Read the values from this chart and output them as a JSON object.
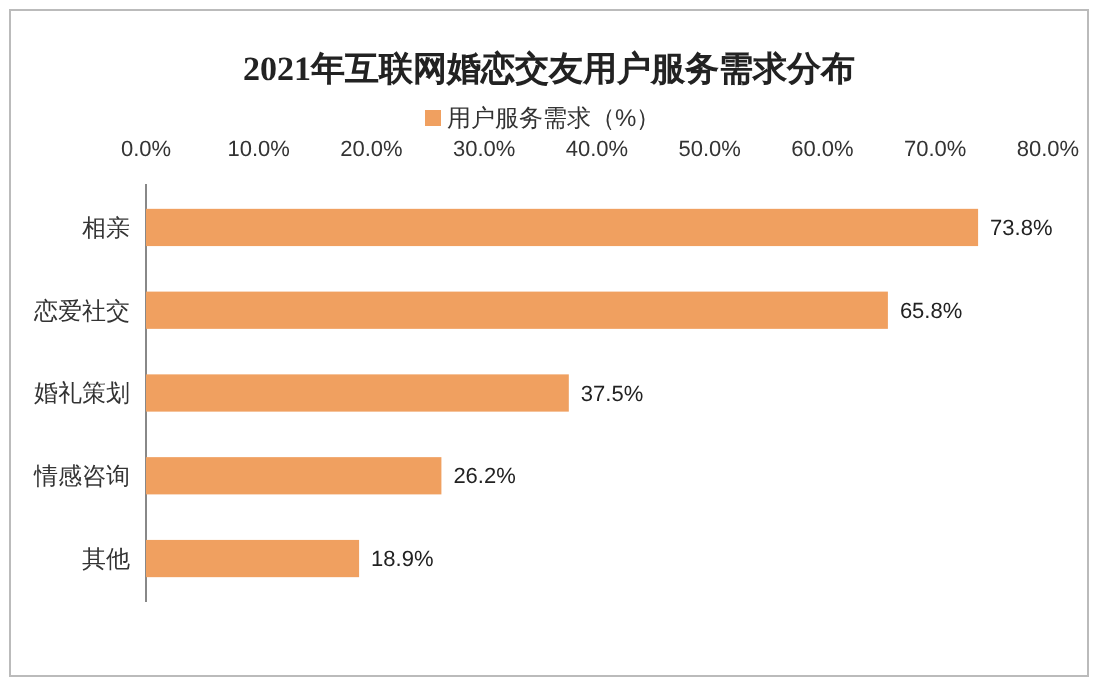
{
  "chart_data": {
    "type": "bar",
    "orientation": "horizontal",
    "title": "2021年互联网婚恋交友用户服务需求分布",
    "categories": [
      "相亲",
      "恋爱社交",
      "婚礼策划",
      "情感咨询",
      "其他"
    ],
    "series": [
      {
        "name": "用户服务需求（%）",
        "color": "#f0a060",
        "values": [
          73.8,
          65.8,
          37.5,
          26.2,
          18.9
        ],
        "value_labels": [
          "73.8%",
          "65.8%",
          "37.5%",
          "26.2%",
          "18.9%"
        ]
      }
    ],
    "xlim": [
      0,
      80
    ],
    "xticks": [
      {
        "value": 0,
        "label": "0.0%"
      },
      {
        "value": 10,
        "label": "10.0%"
      },
      {
        "value": 20,
        "label": "20.0%"
      },
      {
        "value": 30,
        "label": "30.0%"
      },
      {
        "value": 40,
        "label": "40.0%"
      },
      {
        "value": 50,
        "label": "50.0%"
      },
      {
        "value": 60,
        "label": "60.0%"
      },
      {
        "value": 70,
        "label": "70.0%"
      },
      {
        "value": 80,
        "label": "80.0%"
      }
    ],
    "grid": false,
    "legend": "top"
  }
}
